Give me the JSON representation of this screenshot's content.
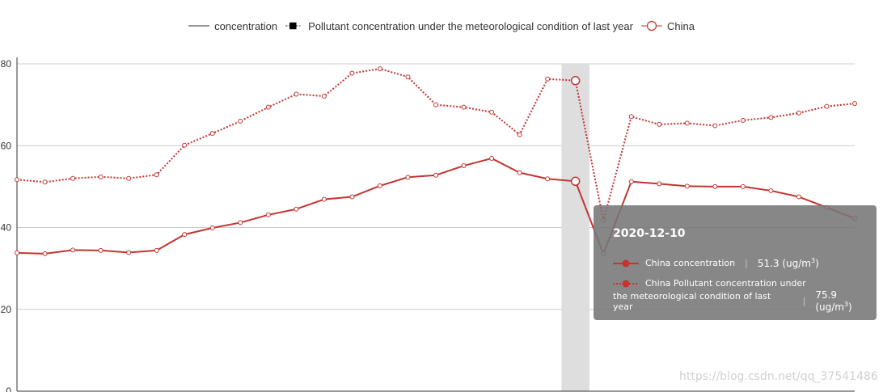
{
  "legend": [
    {
      "label": "concentration",
      "style": "line"
    },
    {
      "label": "Pollutant concentration under the meteorological condition of last year",
      "style": "square"
    },
    {
      "label": "China",
      "style": "circle"
    }
  ],
  "tooltip": {
    "date": "2020-12-10",
    "row1_label": "China concentration",
    "row1_value": "51.3 (ug/m",
    "row2_label_a": "China Pollutant concentration under",
    "row2_label_b": "the meteorological condition of last year",
    "row2_value": "75.9 (ug/m",
    "unit_sup": "3",
    "unit_close": ")",
    "separator": "|"
  },
  "watermark": "https://blog.csdn.net/qq_37541486",
  "colors": {
    "series": "#c23531",
    "grid": "#cccccc",
    "highlight": "#dedede",
    "axis": "#333333"
  },
  "chart_data": {
    "type": "line",
    "title": "",
    "xlabel": "",
    "ylabel": "",
    "ylim": [
      0,
      80
    ],
    "yticks": [
      0,
      20,
      40,
      60,
      80
    ],
    "ytick_labels": [
      "0",
      "20",
      "40",
      "60",
      "80"
    ],
    "highlight_index": 20,
    "series": [
      {
        "name": "China concentration",
        "style": "solid",
        "values": [
          33.8,
          33.6,
          34.5,
          34.4,
          33.9,
          34.4,
          38.3,
          39.9,
          41.2,
          43.1,
          44.5,
          46.9,
          47.5,
          50.2,
          52.3,
          52.8,
          55.1,
          56.9,
          53.4,
          51.9,
          51.3,
          33.6,
          51.2,
          50.7,
          50.1,
          50.0,
          50.0,
          49.0,
          47.5,
          44.9,
          42.2
        ]
      },
      {
        "name": "China Pollutant concentration under the meteorological condition of last year",
        "style": "dotted",
        "values": [
          51.7,
          51.1,
          52.0,
          52.4,
          52.0,
          52.9,
          60.1,
          63.0,
          66.0,
          69.4,
          72.6,
          72.1,
          77.7,
          78.8,
          76.8,
          70.0,
          69.4,
          68.2,
          62.7,
          76.3,
          75.9,
          41.7,
          67.1,
          65.2,
          65.5,
          64.9,
          66.2,
          66.9,
          68.0,
          69.6,
          70.3
        ]
      }
    ]
  }
}
